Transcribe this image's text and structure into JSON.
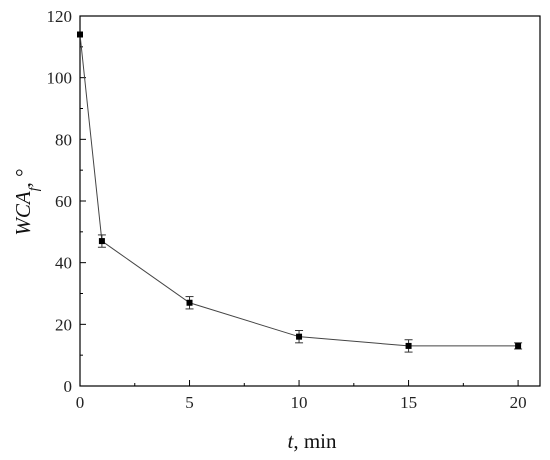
{
  "chart_data": {
    "type": "line",
    "xlabel_var": "t",
    "xlabel_unit": ", min",
    "ylabel_var": "WCA",
    "ylabel_sub": "f",
    "ylabel_unit": ", °",
    "xlim": [
      0,
      21
    ],
    "ylim": [
      0,
      120
    ],
    "xticks": [
      "0",
      "5",
      "10",
      "15",
      "20"
    ],
    "xtick_values": [
      0,
      5,
      10,
      15,
      20
    ],
    "yticks": [
      "0",
      "20",
      "40",
      "60",
      "80",
      "100",
      "120"
    ],
    "ytick_values": [
      0,
      20,
      40,
      60,
      80,
      100,
      120
    ],
    "grid": false,
    "series": [
      {
        "x": [
          0,
          1,
          5,
          10,
          15,
          20
        ],
        "y": [
          114,
          47,
          27,
          16,
          13,
          13
        ],
        "err": [
          0,
          2,
          2,
          2,
          2,
          1
        ],
        "color": "#000000",
        "line_color": "#444444",
        "marker": "square"
      }
    ]
  }
}
